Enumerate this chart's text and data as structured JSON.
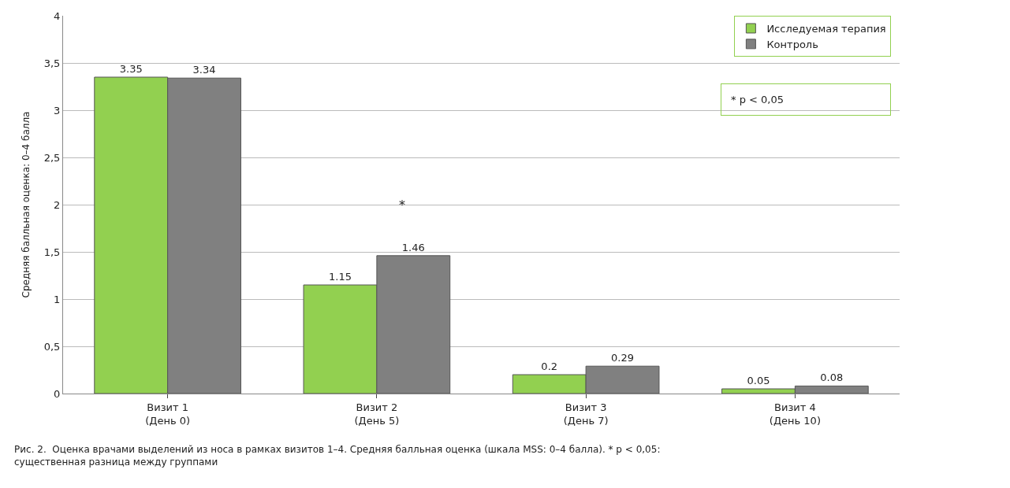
{
  "chart_data": {
    "type": "bar",
    "ylabel": "Средняя балльная оценка: 0–4 балла",
    "categories": [
      "Визит 1\n(День 0)",
      "Визит 2\n(День 5)",
      "Визит 3\n(День 7)",
      "Визит 4\n(День 10)"
    ],
    "series": [
      {
        "name": "Исследуемая терапия",
        "color": "#92d050",
        "values": [
          3.35,
          1.15,
          0.2,
          0.05
        ],
        "value_labels": [
          "3.35",
          "1.15",
          "0.2",
          "0.05"
        ]
      },
      {
        "name": "Контроль",
        "color": "#808080",
        "values": [
          3.34,
          1.46,
          0.29,
          0.08
        ],
        "value_labels": [
          "3.34",
          "1.46",
          "0.29",
          "0.08"
        ]
      }
    ],
    "ylim": [
      0,
      4
    ],
    "yticks": [
      0,
      {
        "value": 0.5,
        "label": "0,5"
      },
      1,
      {
        "value": 1.5,
        "label": "1,5"
      },
      2,
      {
        "value": 2.5,
        "label": "2,5"
      },
      3,
      {
        "value": 3.5,
        "label": "3,5"
      },
      4
    ],
    "grid": "y",
    "legend": "top right",
    "annotations": [
      "*",
      "* p < 0,05",
      "Рис. 2.  Оценка врачами выделений из носа в рамках визитов 1–4. Средняя балльная оценка (шкала MSS: 0–4 балла). * p < 0,05:\nсущественная разница между группами"
    ]
  }
}
